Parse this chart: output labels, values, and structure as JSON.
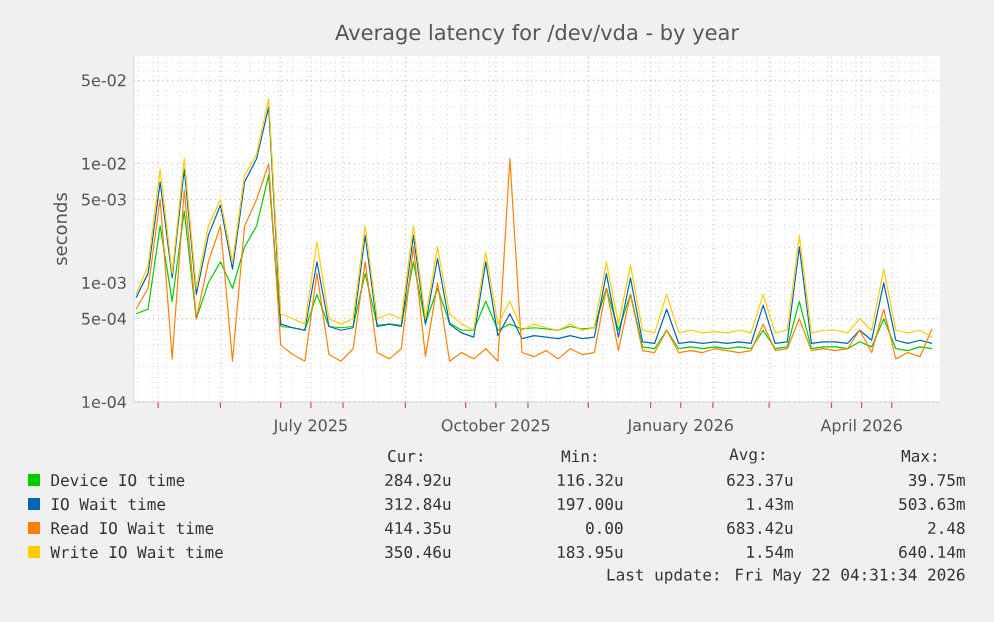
{
  "chart_data": {
    "type": "line",
    "title": "Average latency for /dev/vda - by year",
    "ylabel": "seconds",
    "log": "y",
    "grid": true,
    "legend": "bottom",
    "marker": "none",
    "line_style": "solid",
    "xlim": [
      "2025-04-19",
      "2026-05-25"
    ],
    "ylim": [
      0.0001,
      0.08
    ],
    "xticks": [
      {
        "value": "2025-05-01",
        "label": null
      },
      {
        "value": "2025-06-01",
        "label": null
      },
      {
        "value": "2025-07-01",
        "label": null
      },
      {
        "value": "2025-07-16",
        "label": "July 2025"
      },
      {
        "value": "2025-08-01",
        "label": null
      },
      {
        "value": "2025-09-01",
        "label": null
      },
      {
        "value": "2025-10-01",
        "label": null
      },
      {
        "value": "2025-10-16",
        "label": "October 2025"
      },
      {
        "value": "2025-11-01",
        "label": null
      },
      {
        "value": "2025-12-01",
        "label": null
      },
      {
        "value": "2026-01-01",
        "label": null
      },
      {
        "value": "2026-01-16",
        "label": "January 2026"
      },
      {
        "value": "2026-02-01",
        "label": null
      },
      {
        "value": "2026-03-01",
        "label": null
      },
      {
        "value": "2026-04-01",
        "label": null
      },
      {
        "value": "2026-04-16",
        "label": "April 2026"
      },
      {
        "value": "2026-05-01",
        "label": null
      }
    ],
    "yticks": [
      {
        "value": 0.0001,
        "label": "1e-04"
      },
      {
        "value": 0.0005,
        "label": "5e-04"
      },
      {
        "value": 0.001,
        "label": "1e-03"
      },
      {
        "value": 0.005,
        "label": "5e-03"
      },
      {
        "value": 0.01,
        "label": "1e-02"
      },
      {
        "value": 0.05,
        "label": "5e-02"
      }
    ],
    "x": [
      "2025-04-20",
      "2025-04-26",
      "2025-05-02",
      "2025-05-08",
      "2025-05-14",
      "2025-05-20",
      "2025-05-26",
      "2025-06-01",
      "2025-06-07",
      "2025-06-13",
      "2025-06-19",
      "2025-06-25",
      "2025-07-01",
      "2025-07-07",
      "2025-07-13",
      "2025-07-19",
      "2025-07-25",
      "2025-07-31",
      "2025-08-06",
      "2025-08-12",
      "2025-08-18",
      "2025-08-24",
      "2025-08-30",
      "2025-09-05",
      "2025-09-11",
      "2025-09-17",
      "2025-09-23",
      "2025-09-29",
      "2025-10-05",
      "2025-10-11",
      "2025-10-17",
      "2025-10-23",
      "2025-10-29",
      "2025-11-04",
      "2025-11-10",
      "2025-11-16",
      "2025-11-22",
      "2025-11-28",
      "2025-12-04",
      "2025-12-10",
      "2025-12-16",
      "2025-12-22",
      "2025-12-28",
      "2026-01-03",
      "2026-01-09",
      "2026-01-15",
      "2026-01-21",
      "2026-01-27",
      "2026-02-02",
      "2026-02-08",
      "2026-02-14",
      "2026-02-20",
      "2026-02-26",
      "2026-03-04",
      "2026-03-10",
      "2026-03-16",
      "2026-03-22",
      "2026-03-28",
      "2026-04-03",
      "2026-04-09",
      "2026-04-15",
      "2026-04-21",
      "2026-04-27",
      "2026-05-03",
      "2026-05-09",
      "2026-05-15",
      "2026-05-21"
    ],
    "series": [
      {
        "name": "Device IO time",
        "color": "#00cc00",
        "values": [
          0.00055,
          0.0006,
          0.003,
          0.0007,
          0.004,
          0.0005,
          0.001,
          0.0015,
          0.0009,
          0.002,
          0.003,
          0.008,
          0.00043,
          0.00042,
          0.0004,
          0.0008,
          0.00043,
          0.00042,
          0.00043,
          0.0012,
          0.00044,
          0.00045,
          0.00044,
          0.0015,
          0.00046,
          0.0009,
          0.00046,
          0.0004,
          0.0004,
          0.0007,
          0.0004,
          0.00045,
          0.00041,
          0.00042,
          0.00041,
          0.0004,
          0.00043,
          0.00041,
          0.00042,
          0.0009,
          0.0004,
          0.0008,
          0.00029,
          0.00028,
          0.0004,
          0.00028,
          0.00029,
          0.00028,
          0.00029,
          0.00028,
          0.00029,
          0.00028,
          0.0004,
          0.00028,
          0.00029,
          0.0007,
          0.00028,
          0.00029,
          0.00029,
          0.00028,
          0.00032,
          0.00029,
          0.0005,
          0.00028,
          0.00027,
          0.00029,
          0.00028
        ]
      },
      {
        "name": "IO Wait time",
        "color": "#0066b3",
        "values": [
          0.00075,
          0.0012,
          0.007,
          0.0011,
          0.009,
          0.0008,
          0.0025,
          0.0045,
          0.0013,
          0.007,
          0.011,
          0.03,
          0.00045,
          0.00042,
          0.0004,
          0.0015,
          0.00043,
          0.0004,
          0.00042,
          0.0025,
          0.00043,
          0.00045,
          0.00043,
          0.0025,
          0.00045,
          0.0016,
          0.00045,
          0.00038,
          0.00035,
          0.0015,
          0.00036,
          0.00055,
          0.00034,
          0.00036,
          0.00035,
          0.00034,
          0.00036,
          0.00034,
          0.00035,
          0.0012,
          0.00035,
          0.0011,
          0.00032,
          0.00031,
          0.0006,
          0.00031,
          0.00032,
          0.00031,
          0.00032,
          0.00031,
          0.00032,
          0.00031,
          0.00065,
          0.00031,
          0.00032,
          0.002,
          0.00031,
          0.00032,
          0.00032,
          0.00031,
          0.0004,
          0.00033,
          0.001,
          0.00033,
          0.00031,
          0.00033,
          0.00031
        ]
      },
      {
        "name": "Read IO Wait time",
        "color": "#ff8000",
        "values": [
          0.0006,
          0.0009,
          0.005,
          0.00023,
          0.006,
          0.0005,
          0.0015,
          0.003,
          0.00022,
          0.003,
          0.005,
          0.01,
          0.0003,
          0.00025,
          0.00022,
          0.0012,
          0.00025,
          0.00022,
          0.00028,
          0.0015,
          0.00026,
          0.00023,
          0.00028,
          0.002,
          0.00024,
          0.001,
          0.00022,
          0.00026,
          0.00023,
          0.00028,
          0.00022,
          0.011,
          0.00026,
          0.00024,
          0.00027,
          0.00023,
          0.00028,
          0.00025,
          0.00026,
          0.0009,
          0.00027,
          0.0008,
          0.00027,
          0.00026,
          0.0004,
          0.00026,
          0.00027,
          0.00026,
          0.00028,
          0.00027,
          0.00026,
          0.00027,
          0.00045,
          0.00027,
          0.00028,
          0.0005,
          0.00027,
          0.00028,
          0.00027,
          0.00028,
          0.0004,
          0.00026,
          0.0006,
          0.00023,
          0.00026,
          0.00024,
          0.00041
        ]
      },
      {
        "name": "Write IO Wait time",
        "color": "#ffcc00",
        "values": [
          0.0008,
          0.0014,
          0.009,
          0.0012,
          0.011,
          0.0009,
          0.003,
          0.005,
          0.0015,
          0.008,
          0.012,
          0.035,
          0.00055,
          0.0005,
          0.00045,
          0.0022,
          0.0005,
          0.00045,
          0.0005,
          0.003,
          0.0005,
          0.00055,
          0.0005,
          0.003,
          0.0005,
          0.002,
          0.00055,
          0.00045,
          0.0004,
          0.0018,
          0.00045,
          0.0007,
          0.0004,
          0.00045,
          0.00042,
          0.0004,
          0.00045,
          0.0004,
          0.00042,
          0.0015,
          0.00045,
          0.0014,
          0.0004,
          0.00038,
          0.0008,
          0.00038,
          0.0004,
          0.00038,
          0.00039,
          0.00038,
          0.0004,
          0.00038,
          0.0008,
          0.00038,
          0.0004,
          0.0025,
          0.00038,
          0.0004,
          0.0004,
          0.00038,
          0.0005,
          0.0004,
          0.0013,
          0.0004,
          0.00038,
          0.0004,
          0.00035
        ]
      }
    ],
    "annotations": [
      "Cur:",
      "Min:",
      "Avg:",
      "Max:",
      "284.92u",
      "116.32u",
      "623.37u",
      "39.75m",
      "312.84u",
      "197.00u",
      "1.43m",
      "503.63m",
      "414.35u",
      "0.00",
      "683.42u",
      "2.48",
      "350.46u",
      "183.95u",
      "1.54m",
      "640.14m",
      "Last update: Fri May 22 04:31:34 2026"
    ]
  }
}
